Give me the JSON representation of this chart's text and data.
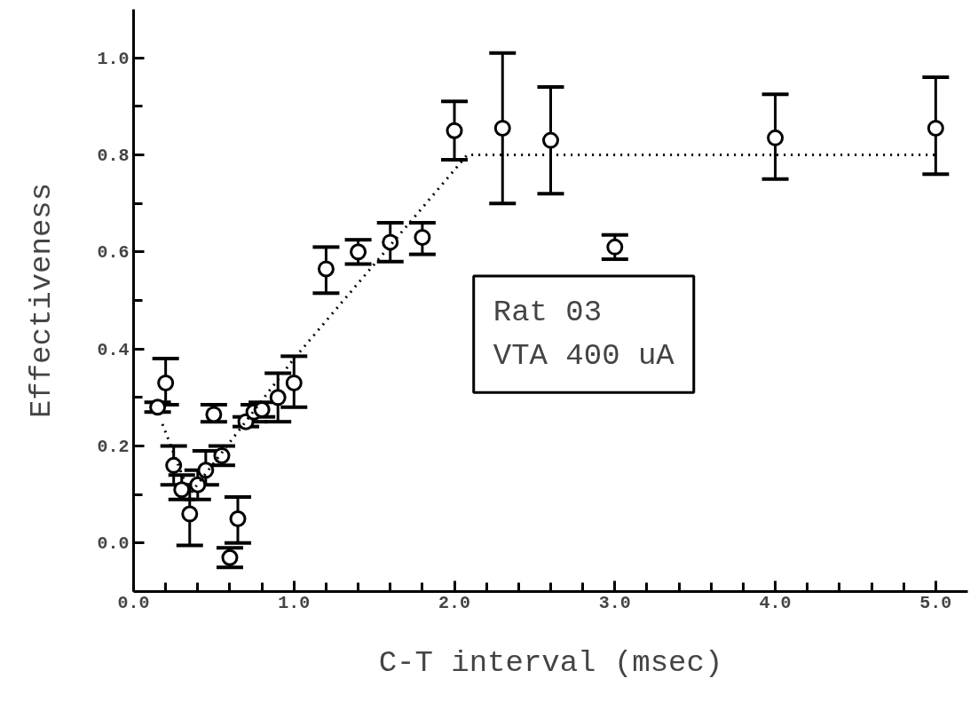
{
  "chart_data": {
    "type": "scatter",
    "xlabel": "C-T interval (msec)",
    "ylabel": "Effectiveness",
    "xlim": [
      0,
      5.2
    ],
    "ylim": [
      -0.1,
      1.1
    ],
    "xticks": [
      {
        "value": 0,
        "label": "0.0"
      },
      {
        "value": 0.2,
        "label": null
      },
      {
        "value": 0.4,
        "label": null
      },
      {
        "value": 0.6,
        "label": null
      },
      {
        "value": 0.8,
        "label": null
      },
      {
        "value": 1,
        "label": "1.0"
      },
      {
        "value": 1.2,
        "label": null
      },
      {
        "value": 1.4,
        "label": null
      },
      {
        "value": 1.6,
        "label": null
      },
      {
        "value": 1.8,
        "label": null
      },
      {
        "value": 2,
        "label": "2.0"
      },
      {
        "value": 2.2,
        "label": null
      },
      {
        "value": 2.4,
        "label": null
      },
      {
        "value": 2.6,
        "label": null
      },
      {
        "value": 2.8,
        "label": null
      },
      {
        "value": 3,
        "label": "3.0"
      },
      {
        "value": 3.2,
        "label": null
      },
      {
        "value": 3.4,
        "label": null
      },
      {
        "value": 3.6,
        "label": null
      },
      {
        "value": 3.8,
        "label": null
      },
      {
        "value": 4,
        "label": "4.0"
      },
      {
        "value": 4.2,
        "label": null
      },
      {
        "value": 4.4,
        "label": null
      },
      {
        "value": 4.6,
        "label": null
      },
      {
        "value": 4.8,
        "label": null
      },
      {
        "value": 5,
        "label": "5.0"
      }
    ],
    "yticks": [
      {
        "value": 0,
        "label": "0.0"
      },
      {
        "value": 0.1,
        "label": null
      },
      {
        "value": 0.2,
        "label": "0.2"
      },
      {
        "value": 0.3,
        "label": null
      },
      {
        "value": 0.4,
        "label": "0.4"
      },
      {
        "value": 0.5,
        "label": null
      },
      {
        "value": 0.6,
        "label": "0.6"
      },
      {
        "value": 0.7,
        "label": null
      },
      {
        "value": 0.8,
        "label": "0.8"
      },
      {
        "value": 0.9,
        "label": null
      },
      {
        "value": 1,
        "label": "1.0"
      }
    ],
    "grid": false,
    "annotations": [
      "Rat 03\nVTA 400 uA"
    ],
    "series": [
      {
        "type": "scatter",
        "marker": "circle",
        "color": "#000000",
        "x": [
          0.15,
          0.2,
          0.25,
          0.3,
          0.35,
          0.4,
          0.45,
          0.5,
          0.55,
          0.6,
          0.65,
          0.7,
          0.75,
          0.8,
          0.9,
          1.0,
          1.2,
          1.4,
          1.6,
          1.8,
          2.0,
          2.3,
          2.6,
          3.0,
          4.0,
          5.0
        ],
        "values": [
          0.28,
          0.33,
          0.16,
          0.11,
          0.06,
          0.12,
          0.15,
          0.265,
          0.18,
          -0.03,
          0.05,
          0.25,
          0.27,
          0.275,
          0.3,
          0.33,
          0.565,
          0.6,
          0.62,
          0.63,
          0.85,
          0.855,
          0.83,
          0.61,
          0.835,
          0.855
        ],
        "errors": [
          [
            0.27,
            0.29
          ],
          [
            0.285,
            0.38
          ],
          [
            0.12,
            0.2
          ],
          [
            0.09,
            0.14
          ],
          [
            -0.005,
            0.12
          ],
          [
            0.09,
            0.15
          ],
          [
            0.12,
            0.19
          ],
          [
            0.25,
            0.285
          ],
          [
            0.16,
            0.2
          ],
          [
            -0.05,
            -0.01
          ],
          [
            0.0,
            0.095
          ],
          [
            0.24,
            0.26
          ],
          [
            0.25,
            0.285
          ],
          [
            0.26,
            0.29
          ],
          [
            0.25,
            0.35
          ],
          [
            0.28,
            0.385
          ],
          [
            0.515,
            0.61
          ],
          [
            0.575,
            0.625
          ],
          [
            0.58,
            0.66
          ],
          [
            0.595,
            0.66
          ],
          [
            0.79,
            0.91
          ],
          [
            0.7,
            1.01
          ],
          [
            0.72,
            0.94
          ],
          [
            0.585,
            0.635
          ],
          [
            0.75,
            0.925
          ],
          [
            0.76,
            0.96
          ]
        ]
      },
      {
        "type": "line",
        "marker": "none",
        "line_style": "dotted",
        "color": "#000000",
        "x": [
          0.18,
          0.35,
          1.0,
          2.08,
          5.0
        ],
        "values": [
          0.245,
          0.1,
          0.38,
          0.8,
          0.8
        ]
      }
    ]
  }
}
